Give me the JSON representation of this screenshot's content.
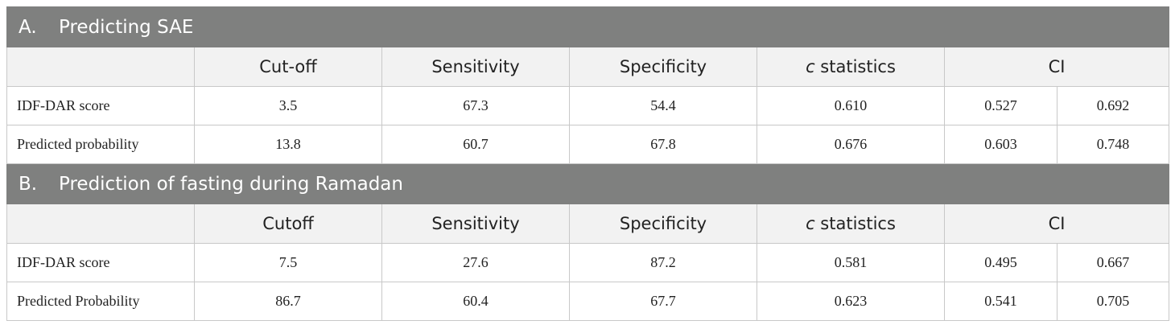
{
  "sections": [
    {
      "letter": "A.",
      "title": "Predicting SAE",
      "headers": {
        "cutoff": "Cut-off",
        "sensitivity": "Sensitivity",
        "specificity": "Specificity",
        "c_italic": "c",
        "c_rest": " statistics",
        "ci": "CI"
      },
      "rows": [
        {
          "label": "IDF-DAR score",
          "cutoff": "3.5",
          "sensitivity": "67.3",
          "specificity": "54.4",
          "c_statistic": "0.610",
          "ci_low": "0.527",
          "ci_high": "0.692"
        },
        {
          "label": "Predicted probability",
          "cutoff": "13.8",
          "sensitivity": "60.7",
          "specificity": "67.8",
          "c_statistic": "0.676",
          "ci_low": "0.603",
          "ci_high": "0.748"
        }
      ]
    },
    {
      "letter": "B.",
      "title": "Prediction of fasting during Ramadan",
      "headers": {
        "cutoff": "Cutoff",
        "sensitivity": "Sensitivity",
        "specificity": "Specificity",
        "c_italic": "c",
        "c_rest": " statistics",
        "ci": "CI"
      },
      "rows": [
        {
          "label": "IDF-DAR score",
          "cutoff": "7.5",
          "sensitivity": "27.6",
          "specificity": "87.2",
          "c_statistic": "0.581",
          "ci_low": "0.495",
          "ci_high": "0.667"
        },
        {
          "label": "Predicted Probability",
          "cutoff": "86.7",
          "sensitivity": "60.4",
          "specificity": "67.7",
          "c_statistic": "0.623",
          "ci_low": "0.541",
          "ci_high": "0.705"
        }
      ]
    }
  ]
}
